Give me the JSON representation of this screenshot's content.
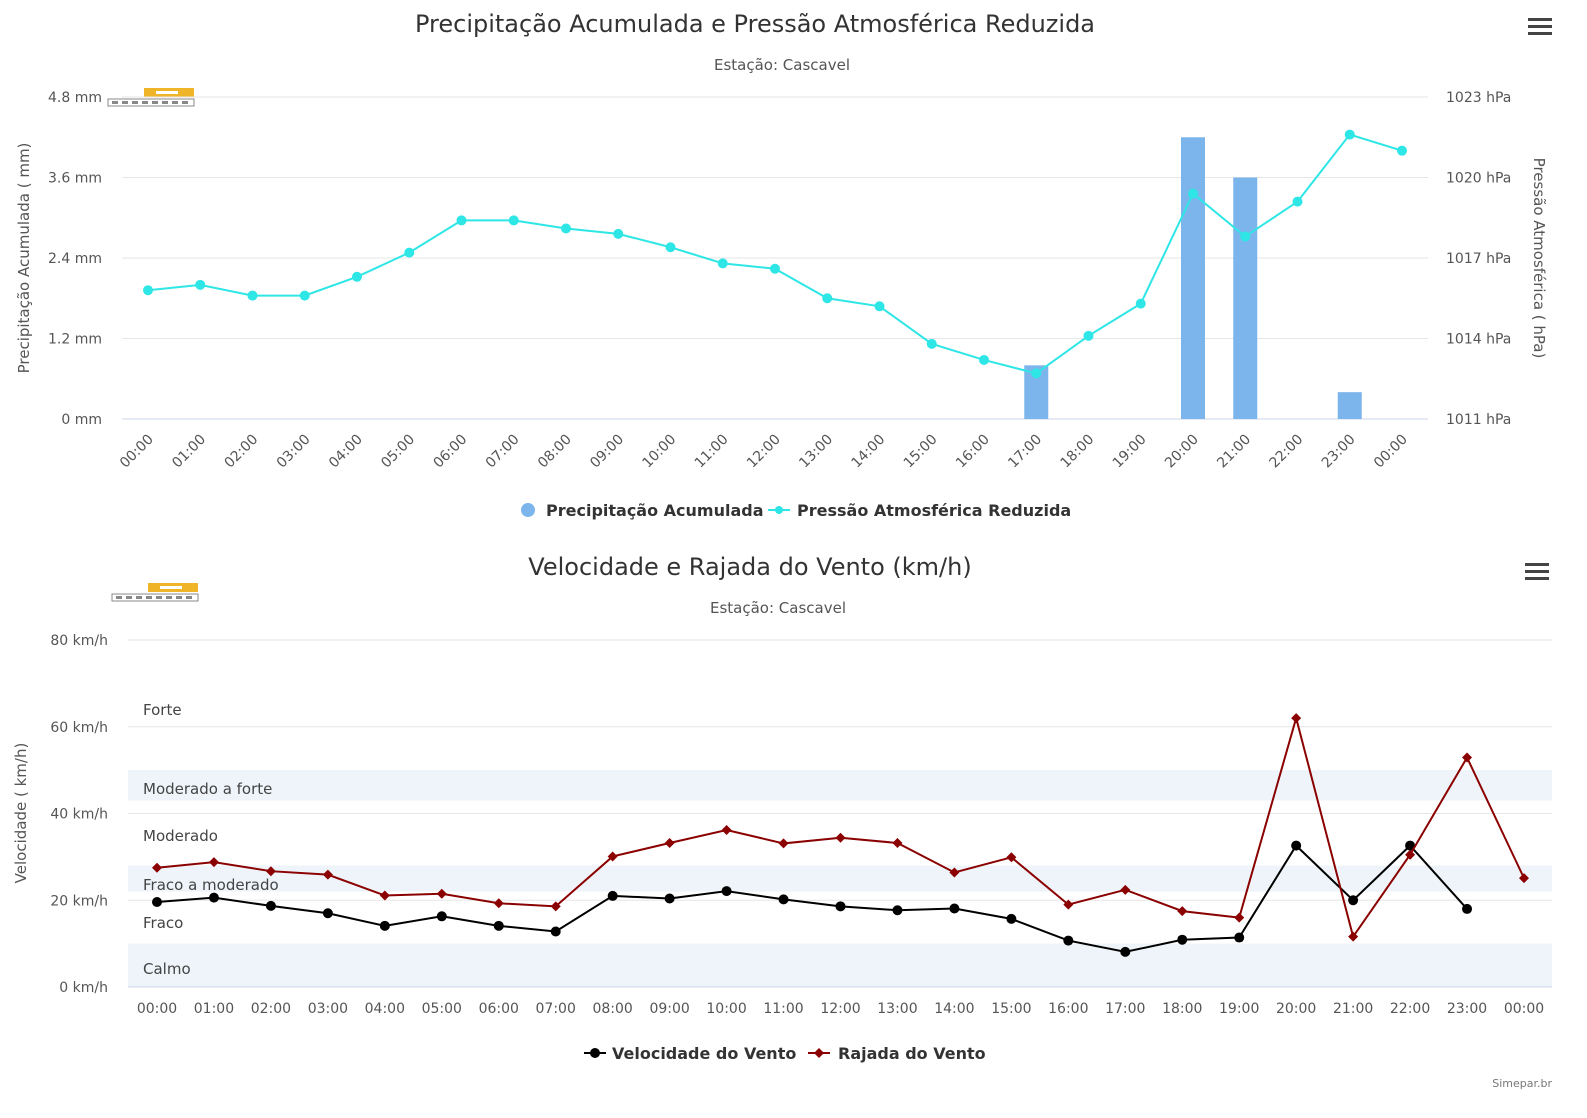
{
  "credits": "Simepar.br",
  "chart_data": [
    {
      "type": "bar+line",
      "title": "Precipitação Acumulada e Pressão Atmosférica Reduzida",
      "subtitle": "Estação: Cascavel",
      "categories": [
        "00:00",
        "01:00",
        "02:00",
        "03:00",
        "04:00",
        "05:00",
        "06:00",
        "07:00",
        "08:00",
        "09:00",
        "10:00",
        "11:00",
        "12:00",
        "13:00",
        "14:00",
        "15:00",
        "16:00",
        "17:00",
        "18:00",
        "19:00",
        "20:00",
        "21:00",
        "22:00",
        "23:00",
        "00:00"
      ],
      "y_left": {
        "title": "Precipitação Acumulada ( mm)",
        "ticks": [
          "0 mm",
          "1.2 mm",
          "2.4 mm",
          "3.6 mm",
          "4.8 mm"
        ],
        "min": 0,
        "max": 4.8
      },
      "y_right": {
        "title": "Pressão Atmosférica ( hPa)",
        "ticks": [
          "1011 hPa",
          "1014 hPa",
          "1017 hPa",
          "1020 hPa",
          "1023 hPa"
        ],
        "min": 1011,
        "max": 1023
      },
      "series": [
        {
          "name": "Precipitação Acumulada",
          "type": "bar",
          "axis": "left",
          "color": "#7cb5ec",
          "values": [
            0,
            0,
            0,
            0,
            0,
            0,
            0,
            0,
            0,
            0,
            0,
            0,
            0,
            0,
            0,
            0,
            0,
            0.8,
            0,
            0,
            4.2,
            3.6,
            0,
            0.4,
            0
          ]
        },
        {
          "name": "Pressão Atmosférica Reduzida",
          "type": "line",
          "axis": "right",
          "color": "#2ee6e6",
          "values": [
            1015.8,
            1016.0,
            1015.6,
            1015.6,
            1016.3,
            1017.2,
            1018.4,
            1018.4,
            1018.1,
            1017.9,
            1017.4,
            1016.8,
            1016.6,
            1015.5,
            1015.2,
            1013.8,
            1013.2,
            1012.7,
            1014.1,
            1015.3,
            1019.4,
            1017.8,
            1019.1,
            1021.6,
            1021.0
          ]
        }
      ],
      "legend_position": "bottom-center",
      "grid": true
    },
    {
      "type": "line",
      "title": "Velocidade e Rajada do Vento (km/h)",
      "subtitle": "Estação: Cascavel",
      "categories": [
        "00:00",
        "01:00",
        "02:00",
        "03:00",
        "04:00",
        "05:00",
        "06:00",
        "07:00",
        "08:00",
        "09:00",
        "10:00",
        "11:00",
        "12:00",
        "13:00",
        "14:00",
        "15:00",
        "16:00",
        "17:00",
        "18:00",
        "19:00",
        "20:00",
        "21:00",
        "22:00",
        "23:00",
        "00:00"
      ],
      "y_left": {
        "title": "Velocidade ( km/h)",
        "ticks": [
          "0 km/h",
          "20 km/h",
          "40 km/h",
          "60 km/h",
          "80 km/h"
        ],
        "min": 0,
        "max": 80
      },
      "bands": [
        {
          "label": "Calmo",
          "from": 0,
          "to": 10,
          "shaded": true
        },
        {
          "label": "Fraco",
          "from": 10,
          "to": 28,
          "shaded": false
        },
        {
          "label": "Fraco a moderado",
          "from": 22,
          "to": 28,
          "shaded": true
        },
        {
          "label": "Moderado",
          "from": 28,
          "to": 43,
          "shaded": false
        },
        {
          "label": "Moderado a forte",
          "from": 43,
          "to": 50,
          "shaded": true
        },
        {
          "label": "Forte",
          "from": 50,
          "to": 80,
          "shaded": false
        }
      ],
      "series": [
        {
          "name": "Velocidade do Vento",
          "type": "line",
          "color": "#000000",
          "marker": "circle",
          "values": [
            19.6,
            20.6,
            18.7,
            17.0,
            14.1,
            16.3,
            14.1,
            12.8,
            21.0,
            20.4,
            22.1,
            20.2,
            18.6,
            17.7,
            18.1,
            15.7,
            10.7,
            8.1,
            10.9,
            11.4,
            32.6,
            20.0,
            32.6,
            18.0,
            null
          ]
        },
        {
          "name": "Rajada do Vento",
          "type": "line",
          "color": "#8b0000",
          "marker": "diamond",
          "values": [
            27.5,
            28.8,
            26.7,
            25.9,
            21.1,
            21.5,
            19.3,
            18.6,
            30.1,
            33.2,
            36.2,
            33.1,
            34.4,
            33.2,
            26.4,
            29.9,
            19.0,
            22.4,
            17.5,
            16.0,
            62.0,
            11.6,
            30.5,
            52.9,
            25.1
          ]
        }
      ],
      "legend_position": "bottom-center",
      "grid": true
    }
  ]
}
